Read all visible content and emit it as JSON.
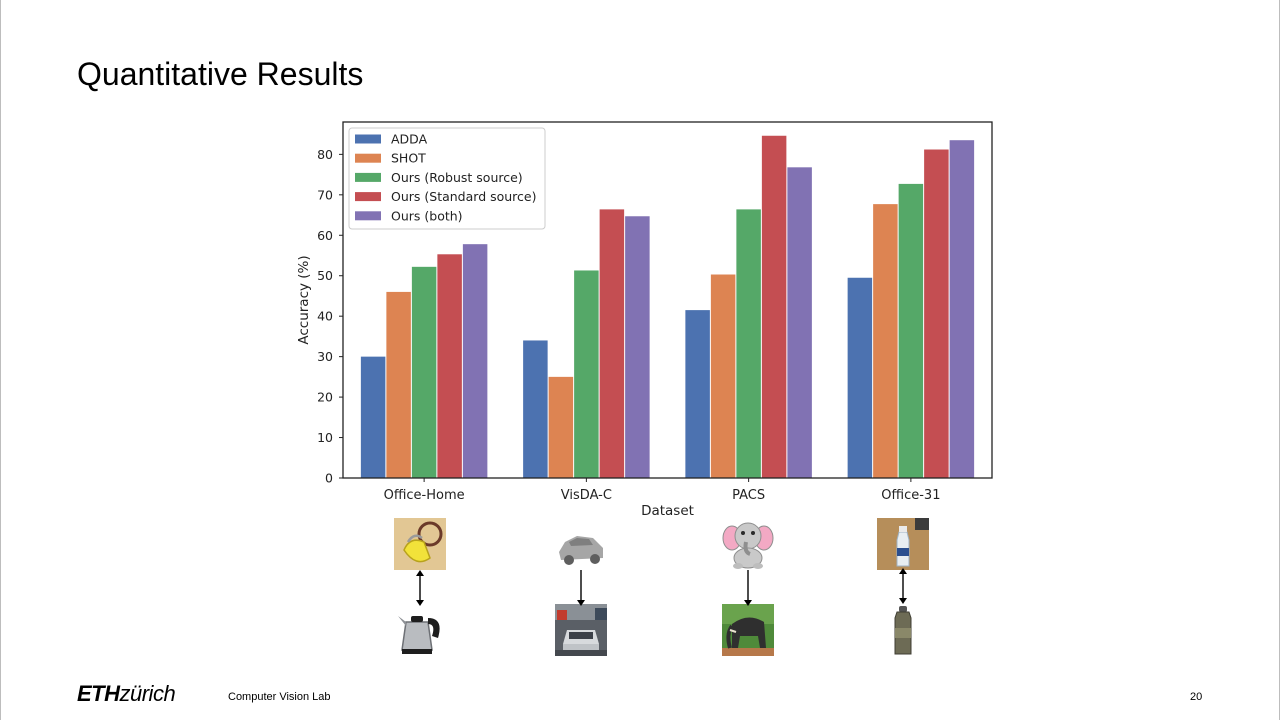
{
  "slide": {
    "title": "Quantitative Results",
    "footer_logo_strong": "ETH",
    "footer_logo_rest": "zürich",
    "footer_lab": "Computer Vision Lab",
    "page_number": "20"
  },
  "chart_data": {
    "type": "bar",
    "xlabel": "Dataset",
    "ylabel": "Accuracy (%)",
    "ylim": [
      0,
      88
    ],
    "yticks": [
      0,
      10,
      20,
      30,
      40,
      50,
      60,
      70,
      80
    ],
    "grid": false,
    "legend_position": "top-left",
    "categories": [
      "Office-Home",
      "VisDA-C",
      "PACS",
      "Office-31"
    ],
    "series": [
      {
        "name": "ADDA",
        "color": "#4c72b0",
        "values": [
          30.0,
          34.0,
          41.5,
          49.5
        ]
      },
      {
        "name": "SHOT",
        "color": "#dd8452",
        "values": [
          46.0,
          25.0,
          50.3,
          67.7
        ]
      },
      {
        "name": "Ours (Robust source)",
        "color": "#55a868",
        "values": [
          52.2,
          51.3,
          66.4,
          72.7
        ]
      },
      {
        "name": "Ours (Standard source)",
        "color": "#c44e52",
        "values": [
          55.3,
          66.4,
          84.6,
          81.2
        ]
      },
      {
        "name": "Ours (both)",
        "color": "#8172b3",
        "values": [
          57.8,
          64.7,
          76.8,
          83.5
        ]
      }
    ]
  },
  "examples": [
    {
      "top": "lock-image",
      "bottom": "kettle-image"
    },
    {
      "top": "car-render-image",
      "bottom": "car-photo-image"
    },
    {
      "top": "elephant-cartoon-image",
      "bottom": "elephant-photo-image"
    },
    {
      "top": "bottle-webcam-image",
      "bottom": "bottle-product-image"
    }
  ]
}
